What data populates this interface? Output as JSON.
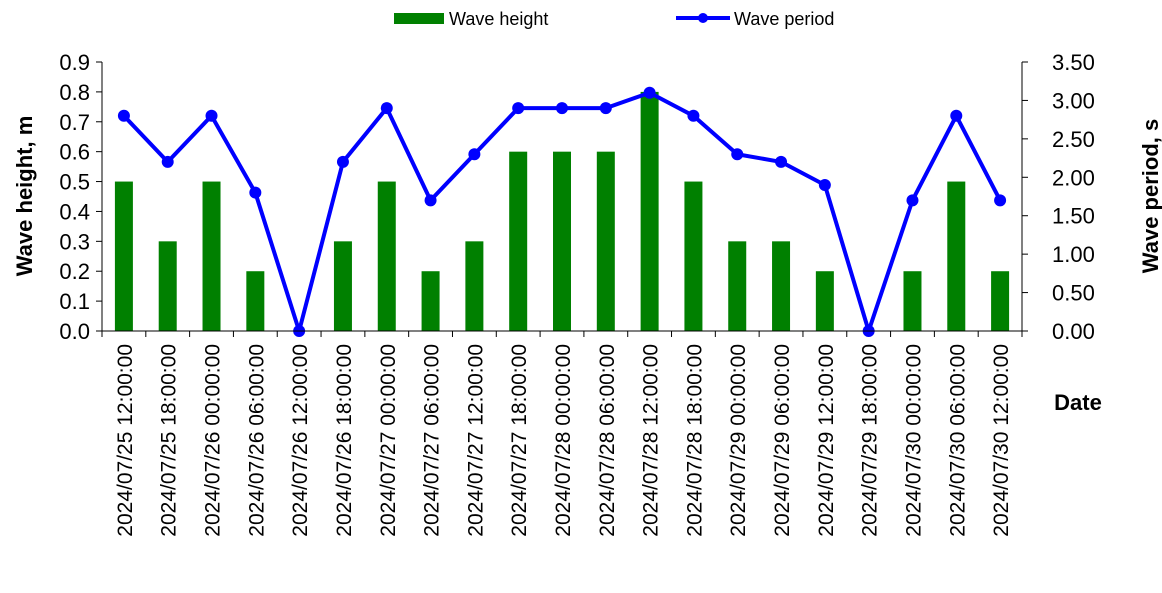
{
  "chart_data": {
    "type": "bar",
    "xlabel": "Date",
    "categories": [
      "2024/07/25 12:00:00",
      "2024/07/25 18:00:00",
      "2024/07/26 00:00:00",
      "2024/07/26 06:00:00",
      "2024/07/26 12:00:00",
      "2024/07/26 18:00:00",
      "2024/07/27 00:00:00",
      "2024/07/27 06:00:00",
      "2024/07/27 12:00:00",
      "2024/07/27 18:00:00",
      "2024/07/28 00:00:00",
      "2024/07/28 06:00:00",
      "2024/07/28 12:00:00",
      "2024/07/28 18:00:00",
      "2024/07/29 00:00:00",
      "2024/07/29 06:00:00",
      "2024/07/29 12:00:00",
      "2024/07/29 18:00:00",
      "2024/07/30 00:00:00",
      "2024/07/30 06:00:00",
      "2024/07/30 12:00:00"
    ],
    "series": [
      {
        "name": "Wave height",
        "type": "bar",
        "axis": "left",
        "color": "#008000",
        "values": [
          0.5,
          0.3,
          0.5,
          0.2,
          0.0,
          0.3,
          0.5,
          0.2,
          0.3,
          0.6,
          0.6,
          0.6,
          0.8,
          0.5,
          0.3,
          0.3,
          0.2,
          0.0,
          0.2,
          0.5,
          0.2
        ]
      },
      {
        "name": "Wave period",
        "type": "line",
        "axis": "right",
        "color": "#0000FF",
        "values": [
          2.8,
          2.2,
          2.8,
          1.8,
          0.0,
          2.2,
          2.9,
          1.7,
          2.3,
          2.9,
          2.9,
          2.9,
          3.1,
          2.8,
          2.3,
          2.2,
          1.9,
          0.0,
          1.7,
          2.8,
          1.7
        ]
      }
    ],
    "y_left": {
      "label": "Wave height, m",
      "range": [
        0,
        0.9
      ],
      "ticks": [
        "0.0",
        "0.1",
        "0.2",
        "0.3",
        "0.4",
        "0.5",
        "0.6",
        "0.7",
        "0.8",
        "0.9"
      ]
    },
    "y_right": {
      "label": "Wave period, s",
      "range": [
        0,
        3.5
      ],
      "ticks": [
        "0.00",
        "0.50",
        "1.00",
        "1.50",
        "2.00",
        "2.50",
        "3.00",
        "3.50"
      ]
    },
    "legend": {
      "position": "top"
    },
    "grid": false
  }
}
